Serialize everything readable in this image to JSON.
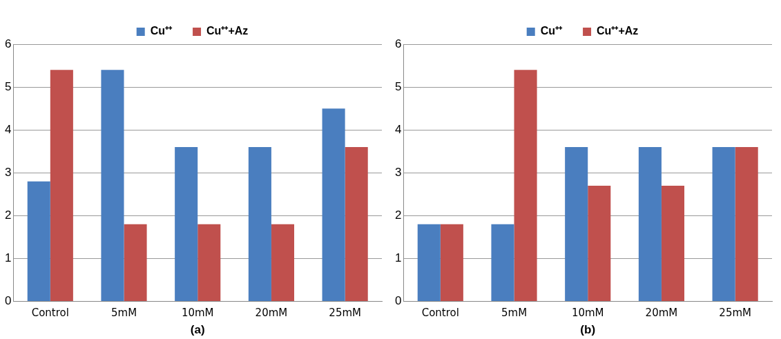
{
  "chart_data": [
    {
      "type": "bar",
      "xlabel": "(a)",
      "categories": [
        "Control",
        "5mM",
        "10mM",
        "20mM",
        "25mM"
      ],
      "series": [
        {
          "name": "Cu⁺⁺",
          "color": "#4a7ebf",
          "values": [
            2.8,
            5.4,
            3.6,
            3.6,
            4.5
          ]
        },
        {
          "name": "Cu⁺⁺+Az",
          "color": "#c0504d",
          "values": [
            5.4,
            1.8,
            1.8,
            1.8,
            3.6
          ]
        }
      ],
      "ylim": [
        0,
        6
      ],
      "yticks": [
        0,
        1,
        2,
        3,
        4,
        5,
        6
      ],
      "grid": "y",
      "legend": "top"
    },
    {
      "type": "bar",
      "xlabel": "(b)",
      "categories": [
        "Control",
        "5mM",
        "10mM",
        "20mM",
        "25mM"
      ],
      "series": [
        {
          "name": "Cu⁺⁺",
          "color": "#4a7ebf",
          "values": [
            1.8,
            1.8,
            3.6,
            3.6,
            3.6
          ]
        },
        {
          "name": "Cu⁺⁺+Az",
          "color": "#c0504d",
          "values": [
            1.8,
            5.4,
            2.7,
            2.7,
            3.6
          ]
        }
      ],
      "ylim": [
        0,
        6
      ],
      "yticks": [
        0,
        1,
        2,
        3,
        4,
        5,
        6
      ],
      "grid": "y",
      "legend": "top"
    }
  ]
}
